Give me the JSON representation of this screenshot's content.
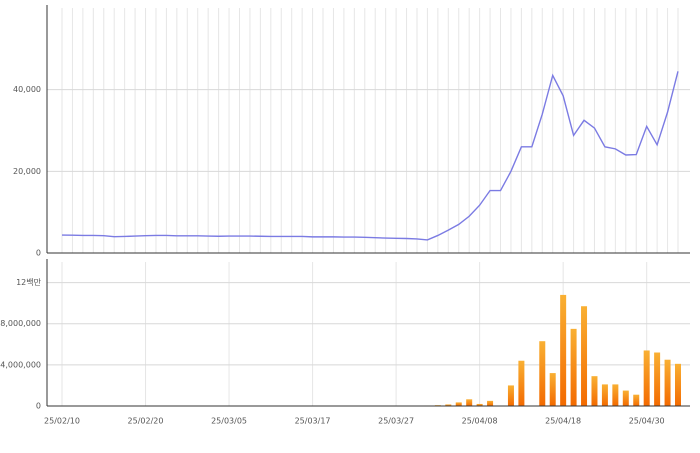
{
  "chart_data": [
    {
      "type": "line",
      "color": "#7b7be3",
      "ylim": [
        0,
        60000
      ],
      "yticks": [
        0,
        {
          "value": 20000,
          "label": "20,000"
        },
        {
          "value": 40000,
          "label": "40,000"
        }
      ],
      "grid": true,
      "values": [
        4400,
        4350,
        4300,
        4300,
        4250,
        4000,
        4050,
        4150,
        4250,
        4300,
        4300,
        4200,
        4200,
        4200,
        4150,
        4100,
        4150,
        4150,
        4150,
        4100,
        4050,
        4050,
        4050,
        4050,
        3950,
        3950,
        3950,
        3900,
        3900,
        3850,
        3750,
        3650,
        3600,
        3550,
        3450,
        3200,
        4300,
        5600,
        7000,
        9000,
        11700,
        15300,
        15300,
        20000,
        26000,
        26000,
        34000,
        43500,
        38500,
        28800,
        32500,
        30600,
        26000,
        25500,
        24000,
        24100,
        31000,
        26500,
        34500,
        44500
      ]
    },
    {
      "type": "bar",
      "color": "#f7a82a",
      "ylim": [
        0,
        14000000
      ],
      "yticks": [
        0,
        {
          "value": 4000000,
          "label": "4,000,000"
        },
        {
          "value": 8000000,
          "label": "8,000,000"
        },
        {
          "value": 12000000,
          "label": "12백만"
        }
      ],
      "grid": true,
      "categories": [
        "25/02/10",
        null,
        null,
        null,
        null,
        null,
        null,
        null,
        "25/02/20",
        null,
        null,
        null,
        null,
        null,
        null,
        null,
        "25/03/05",
        null,
        null,
        null,
        null,
        null,
        null,
        null,
        "25/03/17",
        null,
        null,
        null,
        null,
        null,
        null,
        null,
        "25/03/27",
        null,
        null,
        null,
        null,
        null,
        null,
        null,
        "25/04/08",
        null,
        null,
        null,
        null,
        null,
        null,
        null,
        "25/04/18",
        null,
        null,
        null,
        null,
        null,
        null,
        null,
        "25/04/30",
        null,
        null,
        null
      ],
      "values": [
        30000,
        30000,
        30000,
        30000,
        30000,
        30000,
        30000,
        30000,
        30000,
        30000,
        30000,
        30000,
        30000,
        30000,
        30000,
        30000,
        30000,
        30000,
        30000,
        30000,
        30000,
        30000,
        30000,
        30000,
        30000,
        30000,
        30000,
        30000,
        30000,
        30000,
        30000,
        30000,
        30000,
        30000,
        40000,
        50000,
        80000,
        150000,
        350000,
        650000,
        200000,
        500000,
        0,
        2000000,
        4400000,
        0,
        6300000,
        3200000,
        10800000,
        7500000,
        9700000,
        2900000,
        2100000,
        2100000,
        1500000,
        1100000,
        5400000,
        5200000,
        4500000,
        4100000
      ]
    }
  ]
}
